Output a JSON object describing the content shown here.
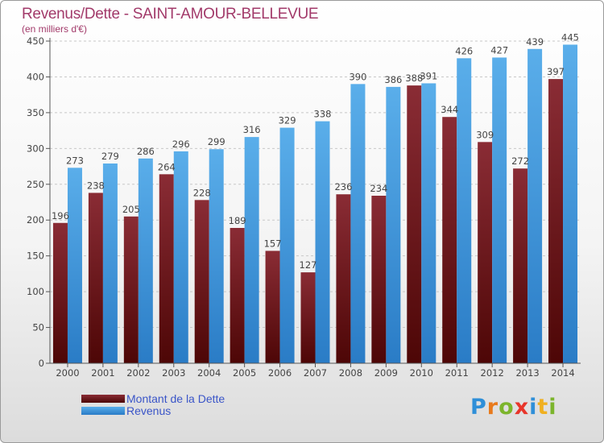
{
  "header": {
    "title": "Revenus/Dette - SAINT-AMOUR-BELLEVUE",
    "unit_note": "(en milliers d'€)"
  },
  "logo": {
    "text": "Proxiti"
  },
  "colors": {
    "dette": "#7a1e24",
    "revenus": "#3d95dc",
    "accent": "#a23a6a",
    "legend_text": "#3a55c8"
  },
  "chart_data": {
    "type": "bar",
    "title": "Revenus/Dette - SAINT-AMOUR-BELLEVUE",
    "subtitle": "(en milliers d'€)",
    "categories": [
      "2000",
      "2001",
      "2002",
      "2003",
      "2004",
      "2005",
      "2006",
      "2007",
      "2008",
      "2009",
      "2010",
      "2011",
      "2012",
      "2013",
      "2014"
    ],
    "series": [
      {
        "name": "Montant de la Dette",
        "values": [
          196,
          238,
          205,
          264,
          228,
          189,
          157,
          127,
          236,
          234,
          388,
          344,
          309,
          272,
          397
        ]
      },
      {
        "name": "Revenus",
        "values": [
          273,
          279,
          286,
          296,
          299,
          316,
          329,
          338,
          390,
          386,
          391,
          426,
          427,
          439,
          445
        ]
      }
    ],
    "yticks": [
      0,
      50,
      100,
      150,
      200,
      250,
      300,
      350,
      400,
      450
    ],
    "ylim": [
      0,
      450
    ],
    "grid": "horizontal dashed",
    "legend_position": "bottom-left"
  }
}
